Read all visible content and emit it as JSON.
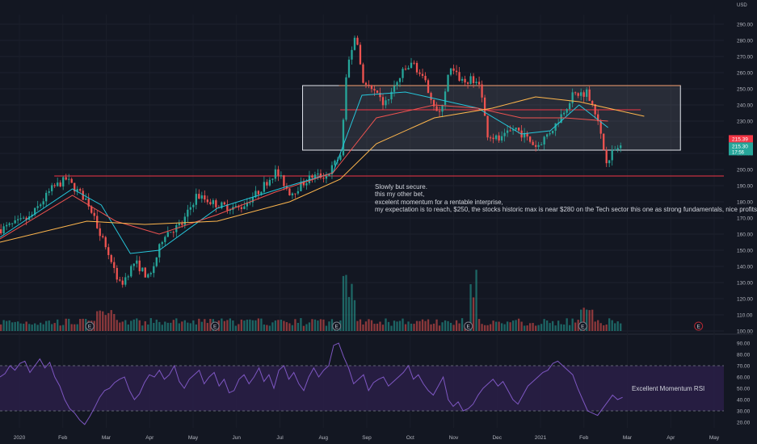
{
  "annotation": {
    "lines": [
      "Slowly but secure.",
      "this my other bet,",
      "excelent momentum for a rentable interprise,",
      "my expectation is to reach, $250, the stocks historic max is near $280 on the Tech sector this one as strong fundamentals, nice profits"
    ]
  },
  "rsi_label": "Excellent Momentum RSI",
  "currency": "USD",
  "colors": {
    "background": "#131722",
    "up": "#26a69a",
    "down": "#ef5350",
    "rsi_line": "#7e57c2",
    "rsi_band": "#2a1f46",
    "ma_fast": "#26c6da",
    "ma_mid": "#ef5350",
    "ma_slow": "#ffb74d",
    "box_fill": "#787b86",
    "box_stroke": "#e0e3eb",
    "hline": "#f23645"
  },
  "chart_data": [
    {
      "type": "candlestick",
      "series_name": "",
      "x_ticks": [
        "2020",
        "Feb",
        "Mar",
        "Apr",
        "May",
        "Jun",
        "Jul",
        "Aug",
        "Sep",
        "Oct",
        "Nov",
        "Dec",
        "2021",
        "Feb",
        "Mar",
        "Apr",
        "May"
      ],
      "y_ticks": [
        100,
        110,
        120,
        130,
        140,
        150,
        160,
        170,
        180,
        190,
        200,
        210,
        220,
        230,
        240,
        250,
        260,
        270,
        280,
        290
      ],
      "ylim": [
        100,
        296
      ],
      "price_labels": [
        "215.39",
        "215.30",
        "17:56"
      ],
      "last_price": 215.3,
      "path": [
        {
          "x": 0,
          "y": 163
        },
        {
          "x": 0.04,
          "y": 170
        },
        {
          "x": 0.07,
          "y": 188
        },
        {
          "x": 0.09,
          "y": 194
        },
        {
          "x": 0.12,
          "y": 180
        },
        {
          "x": 0.145,
          "y": 152
        },
        {
          "x": 0.165,
          "y": 128
        },
        {
          "x": 0.185,
          "y": 143
        },
        {
          "x": 0.205,
          "y": 132
        },
        {
          "x": 0.225,
          "y": 160
        },
        {
          "x": 0.25,
          "y": 166
        },
        {
          "x": 0.27,
          "y": 184
        },
        {
          "x": 0.3,
          "y": 178
        },
        {
          "x": 0.33,
          "y": 176
        },
        {
          "x": 0.355,
          "y": 186
        },
        {
          "x": 0.38,
          "y": 199
        },
        {
          "x": 0.4,
          "y": 185
        },
        {
          "x": 0.43,
          "y": 196
        },
        {
          "x": 0.45,
          "y": 196
        },
        {
          "x": 0.47,
          "y": 210
        },
        {
          "x": 0.478,
          "y": 262
        },
        {
          "x": 0.49,
          "y": 285
        },
        {
          "x": 0.5,
          "y": 255
        },
        {
          "x": 0.53,
          "y": 240
        },
        {
          "x": 0.555,
          "y": 260
        },
        {
          "x": 0.57,
          "y": 266
        },
        {
          "x": 0.59,
          "y": 250
        },
        {
          "x": 0.605,
          "y": 232
        },
        {
          "x": 0.62,
          "y": 262
        },
        {
          "x": 0.64,
          "y": 254
        },
        {
          "x": 0.66,
          "y": 257
        },
        {
          "x": 0.672,
          "y": 222
        },
        {
          "x": 0.69,
          "y": 218
        },
        {
          "x": 0.71,
          "y": 226
        },
        {
          "x": 0.74,
          "y": 214
        },
        {
          "x": 0.765,
          "y": 227
        },
        {
          "x": 0.79,
          "y": 246
        },
        {
          "x": 0.81,
          "y": 248
        },
        {
          "x": 0.82,
          "y": 238
        },
        {
          "x": 0.836,
          "y": 206
        },
        {
          "x": 0.85,
          "y": 213
        },
        {
          "x": 0.86,
          "y": 215
        }
      ],
      "moving_averages": [
        {
          "points": [
            [
              0,
              158
            ],
            [
              0.1,
              188
            ],
            [
              0.14,
              178
            ],
            [
              0.18,
              148
            ],
            [
              0.22,
              150
            ],
            [
              0.3,
              176
            ],
            [
              0.4,
              190
            ],
            [
              0.46,
              198
            ],
            [
              0.5,
              246
            ],
            [
              0.56,
              248
            ],
            [
              0.6,
              244
            ],
            [
              0.66,
              238
            ],
            [
              0.72,
              222
            ],
            [
              0.76,
              224
            ],
            [
              0.8,
              240
            ],
            [
              0.84,
              226
            ]
          ]
        },
        {
          "points": [
            [
              0,
              157
            ],
            [
              0.1,
              184
            ],
            [
              0.16,
              168
            ],
            [
              0.22,
              160
            ],
            [
              0.3,
              172
            ],
            [
              0.38,
              186
            ],
            [
              0.46,
              198
            ],
            [
              0.52,
              232
            ],
            [
              0.6,
              240
            ],
            [
              0.66,
              238
            ],
            [
              0.72,
              232
            ],
            [
              0.78,
              232
            ],
            [
              0.84,
              230
            ]
          ]
        },
        {
          "points": [
            [
              0,
              155
            ],
            [
              0.12,
              168
            ],
            [
              0.2,
              166
            ],
            [
              0.3,
              168
            ],
            [
              0.4,
              180
            ],
            [
              0.47,
              194
            ],
            [
              0.52,
              216
            ],
            [
              0.6,
              232
            ],
            [
              0.68,
              238
            ],
            [
              0.74,
              245
            ],
            [
              0.8,
              242
            ],
            [
              0.89,
              233
            ]
          ]
        }
      ],
      "range_box": {
        "y_top": 252,
        "y_bottom": 212,
        "x_start": 0.418,
        "x_end": 0.94
      },
      "range_midline": 237,
      "support_line": 196,
      "volume_bars": 220,
      "earnings_markers": [
        "E",
        "E",
        "E",
        "E",
        "E",
        "E"
      ],
      "earnings_x": [
        0.124,
        0.297,
        0.465,
        0.647,
        0.805,
        0.965
      ]
    },
    {
      "type": "line",
      "series_name": "",
      "y_ticks": [
        20,
        30,
        40,
        50,
        60,
        70,
        80,
        90
      ],
      "ylim": [
        15,
        95
      ],
      "band": [
        30,
        70
      ],
      "values": [
        60,
        63,
        70,
        66,
        72,
        74,
        64,
        70,
        76,
        68,
        73,
        60,
        52,
        40,
        32,
        28,
        22,
        18,
        25,
        33,
        42,
        48,
        50,
        55,
        58,
        60,
        48,
        40,
        45,
        55,
        62,
        60,
        66,
        58,
        62,
        70,
        56,
        50,
        58,
        62,
        66,
        54,
        60,
        64,
        52,
        58,
        46,
        48,
        58,
        62,
        54,
        60,
        68,
        56,
        62,
        50,
        66,
        70,
        58,
        64,
        54,
        48,
        60,
        68,
        60,
        66,
        70,
        88,
        90,
        78,
        68,
        54,
        58,
        62,
        48,
        55,
        58,
        60,
        52,
        56,
        60,
        64,
        70,
        58,
        62,
        54,
        48,
        44,
        52,
        60,
        40,
        34,
        38,
        30,
        32,
        36,
        44,
        50,
        54,
        58,
        52,
        56,
        48,
        40,
        36,
        44,
        52,
        56,
        60,
        64,
        66,
        72,
        74,
        70,
        66,
        62,
        50,
        40,
        30,
        28,
        26,
        32,
        38,
        44,
        40,
        42
      ]
    }
  ]
}
